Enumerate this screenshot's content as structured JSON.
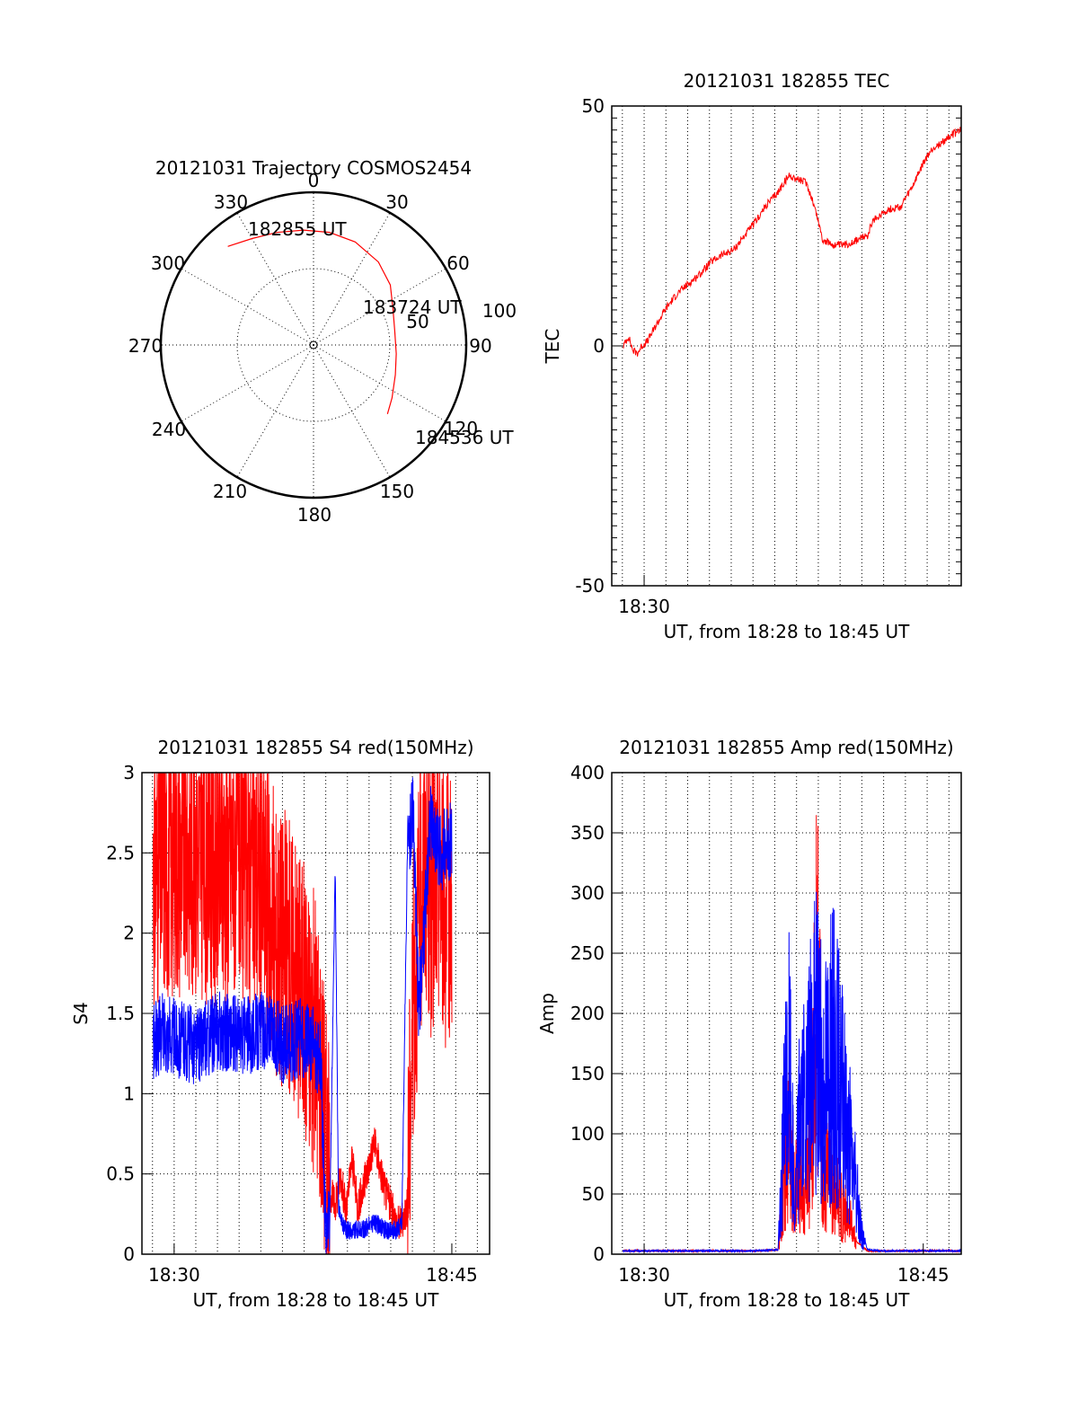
{
  "colors": {
    "red": "#ff0000",
    "blue": "#0000ff",
    "axis": "#000000",
    "grid": "#000000"
  },
  "chart_data": [
    {
      "id": "polar",
      "type": "polar-trajectory",
      "title": "20121031 Trajectory COSMOS2454",
      "azimuth_labels": [
        "0",
        "30",
        "60",
        "90",
        "120",
        "150",
        "180",
        "210",
        "240",
        "270",
        "300",
        "330"
      ],
      "radial_labels": [
        "50",
        "100"
      ],
      "radial_values": [
        50,
        100
      ],
      "r_max": 100,
      "grid": "dotted",
      "trajectory": {
        "color": "#ff0000",
        "points": [
          [
            -41,
            85.5
          ],
          [
            -30,
            80.5
          ],
          [
            -18,
            77.5
          ],
          [
            -5,
            75.5
          ],
          [
            8,
            74.5
          ],
          [
            22,
            72.8
          ],
          [
            38,
            69
          ],
          [
            52,
            63.8
          ],
          [
            66,
            57
          ],
          [
            80,
            54
          ],
          [
            96,
            54.5
          ],
          [
            110,
            57
          ],
          [
            124,
            62
          ],
          [
            133,
            66.2
          ]
        ]
      },
      "annotations": [
        {
          "text": "182855 UT",
          "at": [
            -41,
            85.5
          ]
        },
        {
          "text": "183724 UT",
          "at": [
            66,
            57
          ]
        },
        {
          "text": "184536 UT",
          "at": [
            133,
            66.2
          ]
        }
      ]
    },
    {
      "id": "tec",
      "type": "line",
      "title": "20121031 182855 TEC",
      "ylabel": "TEC",
      "xlabel": "UT, from 18:28 to 18:45 UT",
      "xlim": [
        18.471,
        18.784
      ],
      "ylim": [
        -50,
        50
      ],
      "yticks": [
        "50",
        "0",
        "-50"
      ],
      "yticks_values": [
        50,
        0,
        -50
      ],
      "xticks": [
        {
          "label": "18:30",
          "value": 18.5
        }
      ],
      "grid": true,
      "series": [
        {
          "color": "#ff0000",
          "x": [
            18.4815,
            18.486,
            18.49,
            18.494,
            18.498,
            18.503,
            18.51,
            18.52,
            18.53,
            18.54,
            18.55,
            18.56,
            18.57,
            18.58,
            18.59,
            18.6,
            18.61,
            18.62,
            18.625,
            18.63,
            18.635,
            18.64,
            18.645,
            18.65,
            18.655,
            18.66,
            18.665,
            18.67,
            18.675,
            18.68,
            18.685,
            18.69,
            18.695,
            18.7,
            18.705,
            18.71,
            18.715,
            18.72,
            18.73,
            18.74,
            18.75,
            18.755,
            18.76,
            18.765,
            18.77,
            18.775,
            18.78,
            18.784
          ],
          "y": [
            0,
            2,
            -1,
            -1.5,
            0,
            1,
            4,
            8,
            11,
            13,
            15,
            17.5,
            19,
            20,
            23,
            26,
            29.5,
            32,
            34,
            35.5,
            35,
            34.5,
            34,
            31,
            27,
            22,
            21.5,
            21,
            21,
            21,
            21.5,
            22,
            22.5,
            23,
            26,
            27,
            28,
            28.5,
            29,
            33,
            38,
            40,
            41.5,
            42,
            43,
            44,
            44.5,
            45
          ]
        }
      ]
    },
    {
      "id": "s4",
      "type": "line",
      "title": "20121031 182855 S4 red(150MHz)",
      "ylabel": "S4",
      "xlabel": "UT, from 18:28 to 18:45 UT",
      "xlim": [
        18.471,
        18.784
      ],
      "ylim": [
        0,
        3
      ],
      "yticks": [
        "0",
        "0.5",
        "1",
        "1.5",
        "2",
        "2.5",
        "3"
      ],
      "yticks_values": [
        0,
        0.5,
        1,
        1.5,
        2,
        2.5,
        3
      ],
      "xticks": [
        {
          "label": "18:30",
          "value": 18.5
        },
        {
          "label": "18:45",
          "value": 18.75
        }
      ],
      "grid": true,
      "series": [
        {
          "color": "#ff0000",
          "x": [
            18.481,
            18.5,
            18.52,
            18.54,
            18.56,
            18.58,
            18.59,
            18.61,
            18.62,
            18.63,
            18.635,
            18.64,
            18.645,
            18.65,
            18.655,
            18.66,
            18.665,
            18.67,
            18.68,
            18.69,
            18.7,
            18.705,
            18.71,
            18.715,
            18.72,
            18.725,
            18.73,
            18.735,
            18.74,
            18.745,
            18.75
          ],
          "y": [
            2.4,
            2.5,
            2.5,
            2.4,
            2.5,
            2.3,
            2.0,
            1.8,
            1.5,
            1.3,
            0.9,
            0.4,
            0.3,
            0.5,
            0.25,
            0.6,
            0.3,
            0.4,
            0.7,
            0.4,
            0.2,
            0.2,
            0.3,
            1.6,
            2.0,
            2.5,
            2.2,
            2.3,
            2.4,
            2.1,
            2.3
          ]
        },
        {
          "color": "#0000ff",
          "x": [
            18.481,
            18.49,
            18.5,
            18.52,
            18.54,
            18.56,
            18.58,
            18.6,
            18.615,
            18.625,
            18.632,
            18.636,
            18.64,
            18.645,
            18.648,
            18.65,
            18.655,
            18.66,
            18.67,
            18.68,
            18.69,
            18.7,
            18.705,
            18.71,
            18.715,
            18.72,
            18.725,
            18.73,
            18.74,
            18.75
          ],
          "y": [
            1.3,
            1.4,
            1.35,
            1.3,
            1.4,
            1.35,
            1.4,
            1.3,
            1.35,
            1.3,
            1.2,
            0.2,
            0.15,
            2.4,
            0.3,
            0.2,
            0.15,
            0.15,
            0.15,
            0.2,
            0.15,
            0.15,
            0.2,
            2.5,
            2.8,
            1.5,
            2.0,
            2.7,
            2.5,
            2.6
          ]
        }
      ]
    },
    {
      "id": "amp",
      "type": "line",
      "title": "20121031 182855 Amp red(150MHz)",
      "ylabel": "Amp",
      "xlabel": "UT, from 18:28 to 18:45 UT",
      "xlim": [
        18.471,
        18.784
      ],
      "ylim": [
        0,
        400
      ],
      "yticks": [
        "0",
        "50",
        "100",
        "150",
        "200",
        "250",
        "300",
        "350",
        "400"
      ],
      "yticks_values": [
        0,
        50,
        100,
        150,
        200,
        250,
        300,
        350,
        400
      ],
      "xticks": [
        {
          "label": "18:30",
          "value": 18.5
        },
        {
          "label": "18:45",
          "value": 18.75
        }
      ],
      "grid": true,
      "series": [
        {
          "color": "#ff0000",
          "x": [
            18.481,
            18.5,
            18.55,
            18.6,
            18.62,
            18.625,
            18.63,
            18.635,
            18.64,
            18.645,
            18.65,
            18.655,
            18.66,
            18.665,
            18.67,
            18.675,
            18.68,
            18.685,
            18.69,
            18.7,
            18.71,
            18.784
          ],
          "y": [
            2,
            2,
            2,
            2,
            3,
            80,
            120,
            60,
            90,
            70,
            110,
            300,
            60,
            80,
            50,
            60,
            40,
            30,
            10,
            2,
            2,
            2
          ]
        },
        {
          "color": "#0000ff",
          "x": [
            18.481,
            18.5,
            18.55,
            18.6,
            18.62,
            18.625,
            18.63,
            18.635,
            18.64,
            18.645,
            18.65,
            18.655,
            18.66,
            18.665,
            18.67,
            18.675,
            18.68,
            18.685,
            18.69,
            18.695,
            18.7,
            18.71,
            18.784
          ],
          "y": [
            2,
            2,
            2,
            2,
            3,
            120,
            190,
            40,
            160,
            130,
            190,
            220,
            160,
            190,
            200,
            170,
            130,
            100,
            60,
            20,
            3,
            2,
            2
          ]
        }
      ]
    }
  ]
}
